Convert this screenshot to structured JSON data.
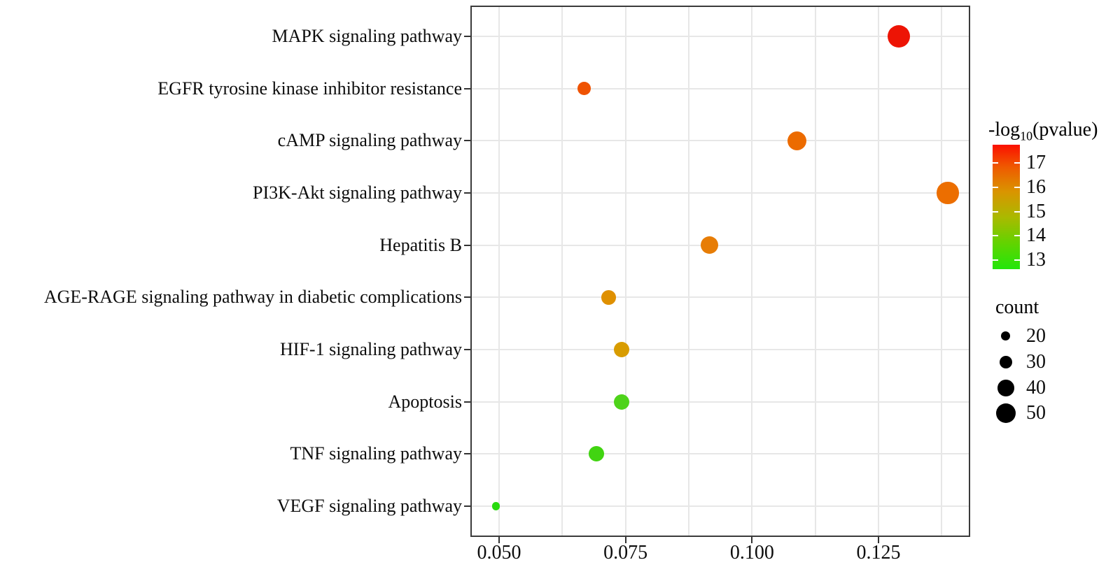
{
  "chart_data": {
    "type": "scatter",
    "title": "",
    "xlabel": "",
    "ylabel": "",
    "x_axis": {
      "major_ticks": [
        {
          "label": "0.050",
          "value": 0.05
        },
        {
          "label": "0.075",
          "value": 0.075
        },
        {
          "label": "0.100",
          "value": 0.1
        },
        {
          "label": "0.125",
          "value": 0.125
        }
      ],
      "minor_gridlines": [
        0.0625,
        0.0875,
        0.1125,
        0.1375
      ],
      "xlim": [
        0.0443,
        0.1431
      ]
    },
    "points": [
      {
        "pathway": "MAPK signaling pathway",
        "x": 0.129,
        "count": 60,
        "neglog10_pvalue": 17.7,
        "color": "#ed1405"
      },
      {
        "pathway": "EGFR tyrosine kinase inhibitor resistance",
        "x": 0.0668,
        "count": 30,
        "neglog10_pvalue": 16.6,
        "color": "#ef5302"
      },
      {
        "pathway": "cAMP signaling pathway",
        "x": 0.1089,
        "count": 48,
        "neglog10_pvalue": 16.4,
        "color": "#ec6b00"
      },
      {
        "pathway": "PI3K-Akt signaling pathway",
        "x": 0.1387,
        "count": 58,
        "neglog10_pvalue": 16.3,
        "color": "#ec6e00"
      },
      {
        "pathway": "Hepatitis B",
        "x": 0.0916,
        "count": 44,
        "neglog10_pvalue": 16.0,
        "color": "#e77d06"
      },
      {
        "pathway": "AGE-RAGE signaling pathway in diabetic complications",
        "x": 0.0717,
        "count": 34,
        "neglog10_pvalue": 15.5,
        "color": "#df9000"
      },
      {
        "pathway": "HIF-1 signaling pathway",
        "x": 0.0742,
        "count": 37,
        "neglog10_pvalue": 15.2,
        "color": "#d89c00"
      },
      {
        "pathway": "Apoptosis",
        "x": 0.0742,
        "count": 37,
        "neglog10_pvalue": 13.3,
        "color": "#4ed31a"
      },
      {
        "pathway": "TNF signaling pathway",
        "x": 0.0692,
        "count": 36,
        "neglog10_pvalue": 13.2,
        "color": "#41d411"
      },
      {
        "pathway": "VEGF signaling pathway",
        "x": 0.0494,
        "count": 18,
        "neglog10_pvalue": 12.9,
        "color": "#28da0e"
      }
    ],
    "legend": {
      "color": {
        "title_prefix": "-log",
        "title_sub": "10",
        "title_suffix": "(pvalue)",
        "tick_labels": [
          "17",
          "16",
          "15",
          "14",
          "13"
        ],
        "tick_values": [
          17,
          16,
          15,
          14,
          13
        ],
        "bar_range": [
          17.75,
          12.6
        ],
        "gradient_stops": [
          {
            "pos": 0.0,
            "color": "#fb1000"
          },
          {
            "pos": 0.18,
            "color": "#ef5a00"
          },
          {
            "pos": 0.38,
            "color": "#d99500"
          },
          {
            "pos": 0.58,
            "color": "#abb900"
          },
          {
            "pos": 0.8,
            "color": "#5fd400"
          },
          {
            "pos": 1.0,
            "color": "#23e60b"
          }
        ],
        "position": "right"
      },
      "size": {
        "title": "count",
        "entries": [
          {
            "label": "20",
            "count": 20
          },
          {
            "label": "30",
            "count": 30
          },
          {
            "label": "40",
            "count": 40
          },
          {
            "label": "50",
            "count": 50
          }
        ],
        "position": "right"
      }
    },
    "style": {
      "grid_color": "#e7e7e7",
      "panel_border_color": "#3b3b3b",
      "tick_color": "#333333",
      "text_color": "#0d0d0d",
      "background": "#ffffff"
    }
  }
}
